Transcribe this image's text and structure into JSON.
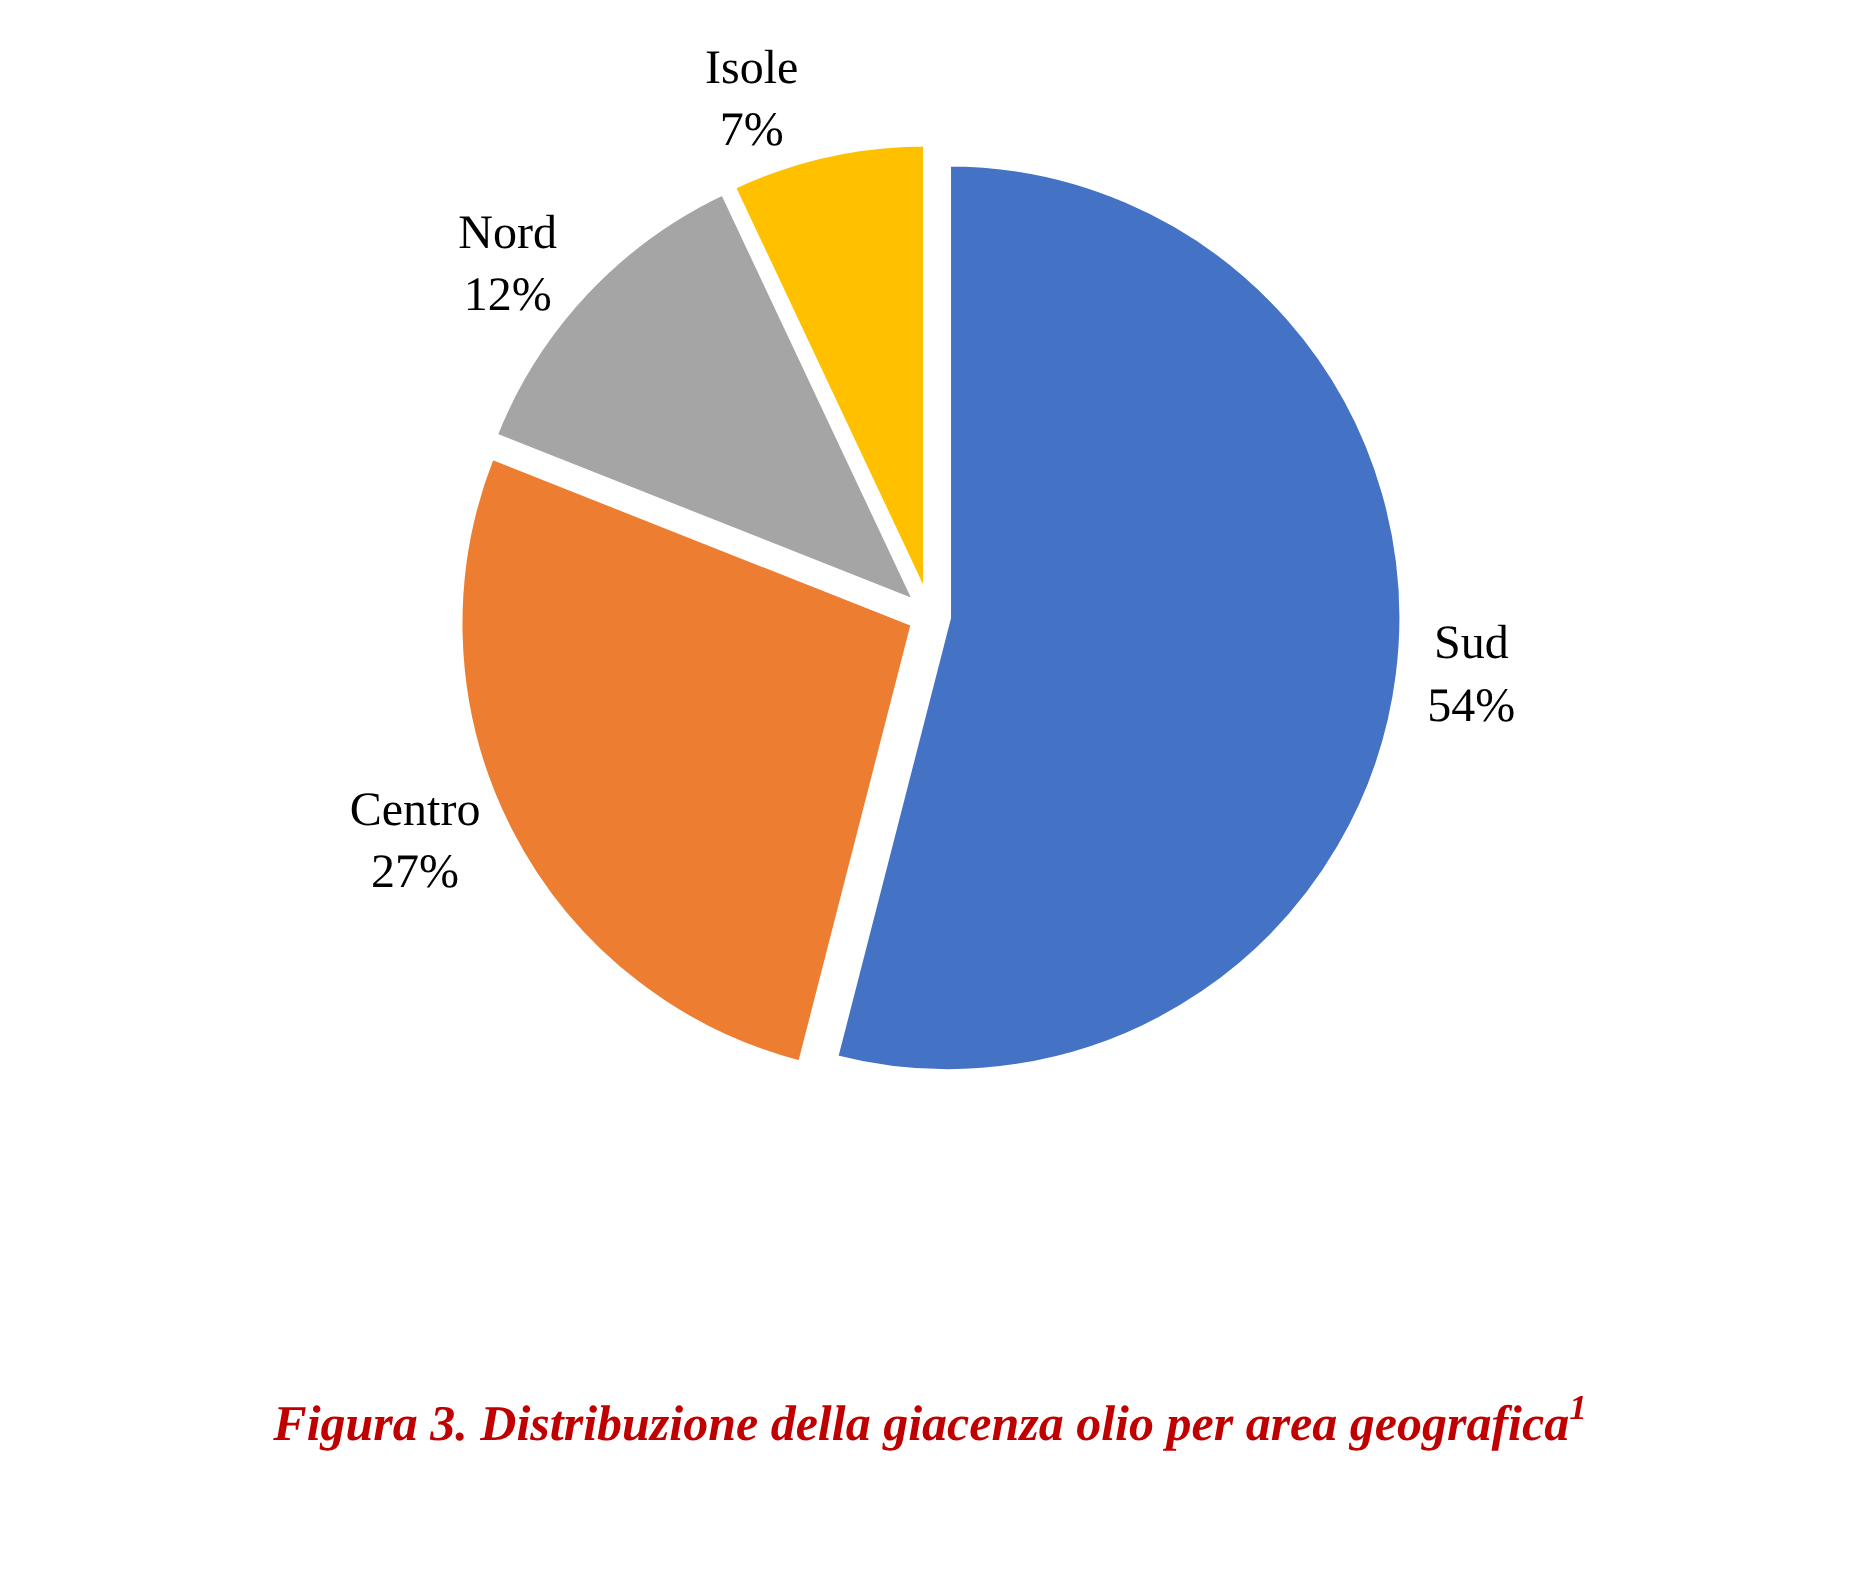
{
  "chart_data": {
    "type": "pie",
    "title": "Figura 3. Distribuzione della giacenza olio per area geografica$^{1}$",
    "categories": [
      "Sud",
      "Centro",
      "Nord",
      "Isole"
    ],
    "values": [
      54,
      27,
      12,
      7
    ],
    "value_labels": [
      "54%",
      "27%",
      "12%",
      "7%"
    ],
    "colors": [
      "#4472c4",
      "#ed7d31",
      "#a5a5a5",
      "#ffc000"
    ],
    "legend": false
  }
}
